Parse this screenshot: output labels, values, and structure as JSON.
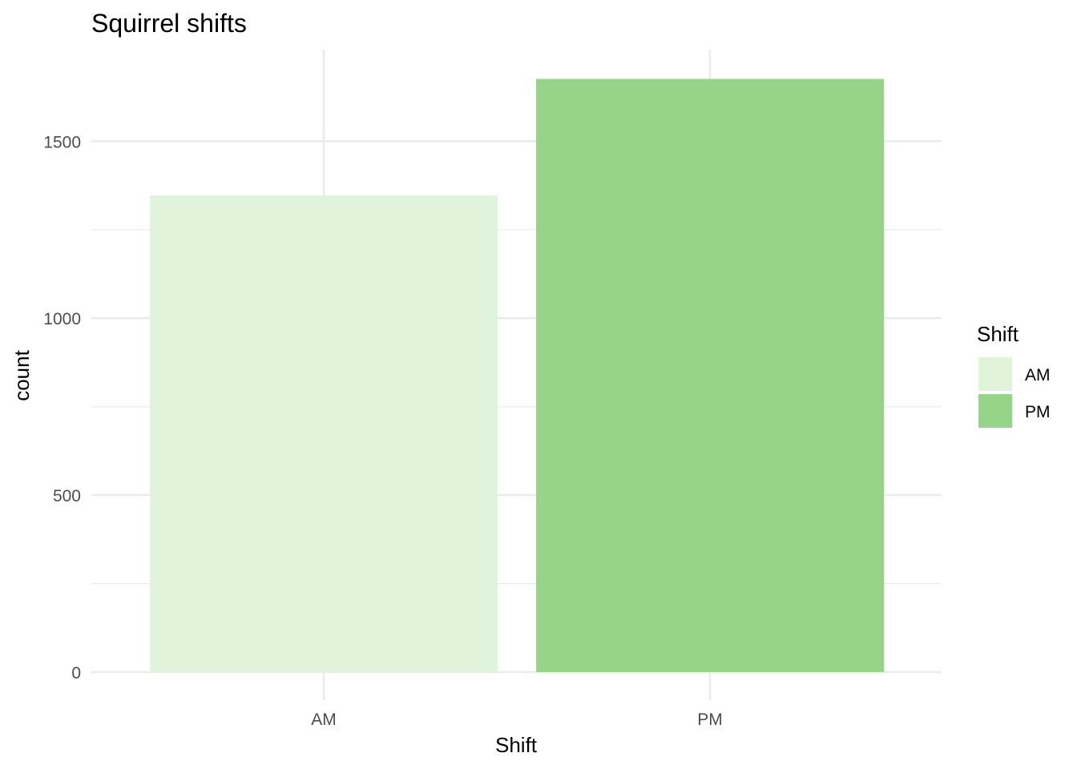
{
  "chart_data": {
    "type": "bar",
    "title": "Squirrel shifts",
    "xlabel": "Shift",
    "ylabel": "count",
    "categories": [
      "AM",
      "PM"
    ],
    "values": [
      1347,
      1676
    ],
    "colors": [
      "#e0f3db",
      "#95d489"
    ],
    "ylim": [
      0,
      1760
    ],
    "yticks": [
      0,
      500,
      1000,
      1500
    ],
    "yticks_minor": [
      250,
      750,
      1250
    ],
    "grid": true,
    "legend": {
      "title": "Shift",
      "position": "right",
      "entries": [
        "AM",
        "PM"
      ]
    }
  }
}
